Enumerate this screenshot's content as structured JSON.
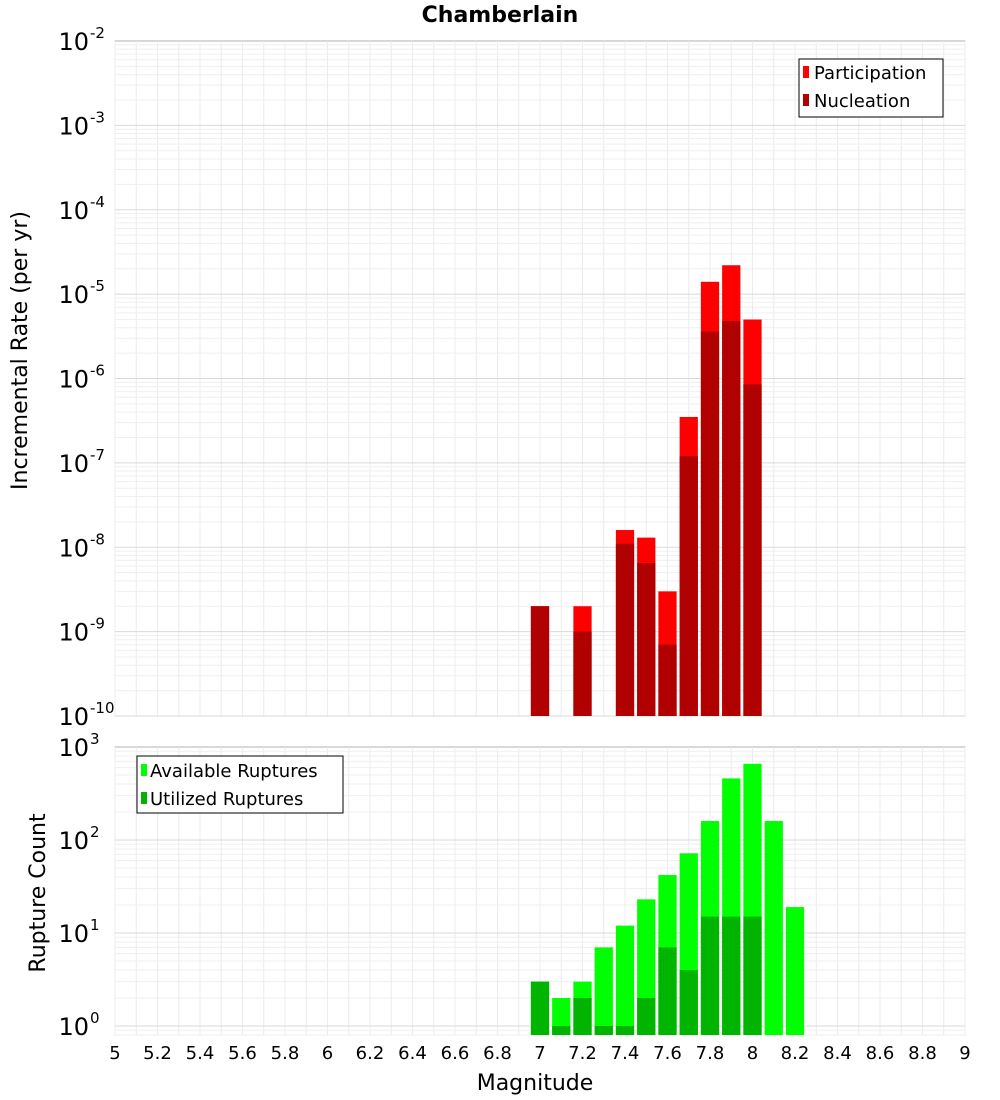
{
  "chart_title": "Chamberlain",
  "chart_data": [
    {
      "type": "bar",
      "title": "Chamberlain",
      "xlabel": "Magnitude",
      "ylabel": "Incremental Rate (per yr)",
      "yscale": "log",
      "ylim": [
        1e-10,
        0.01
      ],
      "xlim": [
        5,
        9
      ],
      "grid": true,
      "legend_position": "top-right",
      "y_tick_labels": [
        {
          "base": "10",
          "exp": "-10",
          "value": 1e-10
        },
        {
          "base": "10",
          "exp": "-9",
          "value": 1e-09
        },
        {
          "base": "10",
          "exp": "-8",
          "value": 1e-08
        },
        {
          "base": "10",
          "exp": "-7",
          "value": 1e-07
        },
        {
          "base": "10",
          "exp": "-6",
          "value": 1e-06
        },
        {
          "base": "10",
          "exp": "-5",
          "value": 1e-05
        },
        {
          "base": "10",
          "exp": "-4",
          "value": 0.0001
        },
        {
          "base": "10",
          "exp": "-3",
          "value": 0.001
        },
        {
          "base": "10",
          "exp": "-2",
          "value": 0.01
        }
      ],
      "x": [
        7.0,
        7.1,
        7.2,
        7.3,
        7.4,
        7.5,
        7.6,
        7.7,
        7.8,
        7.9,
        8.0
      ],
      "series": [
        {
          "name": "Participation",
          "color": "#ff0000",
          "values": [
            2e-09,
            null,
            2e-09,
            null,
            1.6e-08,
            1.3e-08,
            3e-09,
            3.5e-07,
            1.4e-05,
            2.2e-05,
            5e-06
          ]
        },
        {
          "name": "Nucleation",
          "color": "#b00000",
          "values": [
            2e-09,
            null,
            1e-09,
            null,
            1.1e-08,
            6.5e-09,
            7e-10,
            1.2e-07,
            3.6e-06,
            4.8e-06,
            8.5e-07
          ]
        }
      ]
    },
    {
      "type": "bar",
      "xlabel": "Magnitude",
      "ylabel": "Rupture Count",
      "yscale": "log",
      "ylim": [
        0.8,
        1000
      ],
      "xlim": [
        5,
        9
      ],
      "grid": true,
      "legend_position": "top-left",
      "y_tick_labels": [
        {
          "base": "10",
          "exp": "0",
          "value": 1
        },
        {
          "base": "10",
          "exp": "1",
          "value": 10
        },
        {
          "base": "10",
          "exp": "2",
          "value": 100
        },
        {
          "base": "10",
          "exp": "3",
          "value": 1000
        }
      ],
      "x_tick_labels": [
        "5",
        "5.2",
        "5.4",
        "5.6",
        "5.8",
        "6",
        "6.2",
        "6.4",
        "6.6",
        "6.8",
        "7",
        "7.2",
        "7.4",
        "7.6",
        "7.8",
        "8",
        "8.2",
        "8.4",
        "8.6",
        "8.8",
        "9"
      ],
      "x": [
        7.0,
        7.1,
        7.2,
        7.3,
        7.4,
        7.5,
        7.6,
        7.7,
        7.8,
        7.9,
        8.0,
        8.1,
        8.2
      ],
      "series": [
        {
          "name": "Available Ruptures",
          "color": "#00ff00",
          "values": [
            3,
            2,
            3,
            7,
            12,
            23,
            42,
            72,
            160,
            460,
            660,
            160,
            19
          ]
        },
        {
          "name": "Utilized Ruptures",
          "color": "#00b400",
          "values": [
            3,
            1,
            2,
            1,
            1,
            2,
            7,
            4,
            15,
            15,
            15,
            null,
            null
          ]
        }
      ]
    }
  ]
}
